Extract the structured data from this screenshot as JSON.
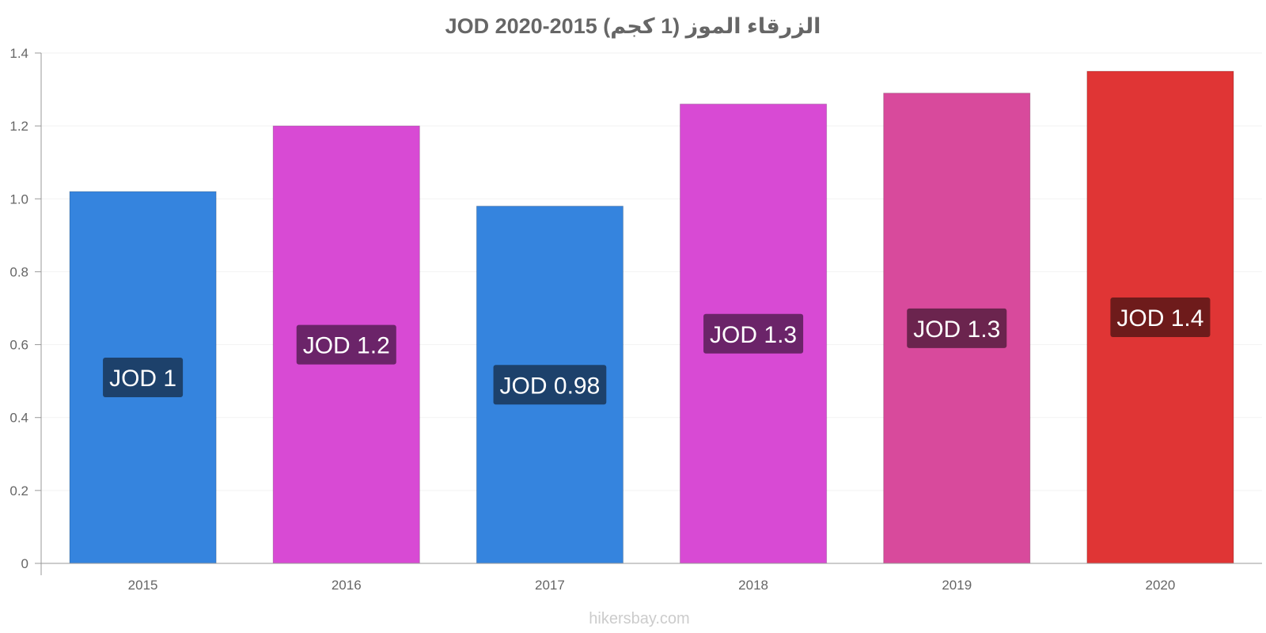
{
  "chart_data": {
    "type": "bar",
    "title": "JOD 2020-2015 الزرقاء الموز (1 كجم)",
    "categories": [
      "2015",
      "2016",
      "2017",
      "2018",
      "2019",
      "2020"
    ],
    "values": [
      1.02,
      1.2,
      0.98,
      1.26,
      1.29,
      1.35
    ],
    "data_labels": [
      "JOD 1",
      "JOD 1.2",
      "JOD 0.98",
      "JOD 1.3",
      "JOD 1.3",
      "JOD 1.4"
    ],
    "bar_colors": [
      "#3584de",
      "#d84ad4",
      "#3584de",
      "#d84ad4",
      "#d84a9c",
      "#e03535"
    ],
    "label_bg_colors": [
      "#1d416b",
      "#6b2469",
      "#1d416b",
      "#6b2469",
      "#6b244e",
      "#6e1b1b"
    ],
    "ylim": [
      0,
      1.4
    ],
    "yticks": [
      0,
      0.2,
      0.4,
      0.6,
      0.8,
      1.0,
      1.2,
      1.4
    ],
    "ytick_labels": [
      "0",
      "0.2",
      "0.4",
      "0.6",
      "0.8",
      "1.0",
      "1.2",
      "1.4"
    ],
    "xlabel": "",
    "ylabel": "",
    "grid": true,
    "legend": "none"
  },
  "watermark": "hikersbay.com"
}
